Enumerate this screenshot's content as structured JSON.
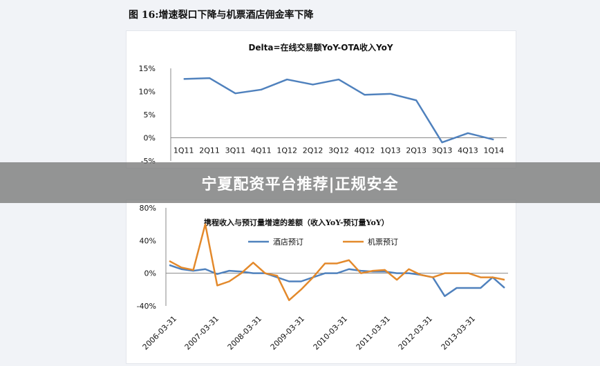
{
  "figure": {
    "title": "图 16:增速裂口下降与机票酒店佣金率下降"
  },
  "banner": {
    "text": "宁夏配资平台推荐|正规安全"
  },
  "colors": {
    "blue": "#4f81bd",
    "orange": "#e3892b",
    "axis": "#888888"
  },
  "chart_data": [
    {
      "type": "line",
      "title": "Delta=在线交易额YoY-OTA收入YoY",
      "categories": [
        "1Q11",
        "2Q11",
        "3Q11",
        "4Q11",
        "1Q12",
        "2Q12",
        "3Q12",
        "4Q12",
        "1Q13",
        "2Q13",
        "3Q13",
        "4Q13",
        "1Q14"
      ],
      "y_ticks": [
        "15%",
        "10%",
        "5%",
        "0%",
        "-5%"
      ],
      "ylim": [
        -5,
        15
      ],
      "series": [
        {
          "values": [
            12.7,
            12.9,
            9.6,
            10.4,
            12.6,
            11.5,
            12.6,
            9.3,
            9.5,
            8.1,
            -1.0,
            1.0,
            -0.4
          ]
        }
      ]
    },
    {
      "type": "line",
      "title": "携程收入与预订量增速的差额（收入YoY-预订量YoY）",
      "y_ticks": [
        "80%",
        "40%",
        "0%",
        "-40%"
      ],
      "ylim": [
        -40,
        80
      ],
      "x_labels": [
        "2006-03-31",
        "2007-03-31",
        "2008-03-31",
        "2009-03-31",
        "2010-03-31",
        "2011-03-31",
        "2012-03-31",
        "2013-03-31"
      ],
      "series": [
        {
          "name": "酒店预订",
          "color": "#4f81bd",
          "values": [
            10,
            5,
            3,
            5,
            -1,
            3,
            2,
            0,
            0,
            -5,
            -10,
            -10,
            -5,
            0,
            0,
            5,
            3,
            2,
            2,
            0,
            0,
            -2,
            -5,
            -28,
            -18,
            -18,
            -18,
            -5,
            -18
          ]
        },
        {
          "name": "机票预订",
          "color": "#e3892b",
          "values": [
            15,
            7,
            4,
            60,
            -15,
            -10,
            0,
            13,
            0,
            -3,
            -33,
            -20,
            -5,
            12,
            12,
            16,
            0,
            3,
            4,
            -8,
            5,
            -2,
            -5,
            0,
            0,
            0,
            -5,
            -5,
            -8
          ]
        }
      ]
    }
  ]
}
